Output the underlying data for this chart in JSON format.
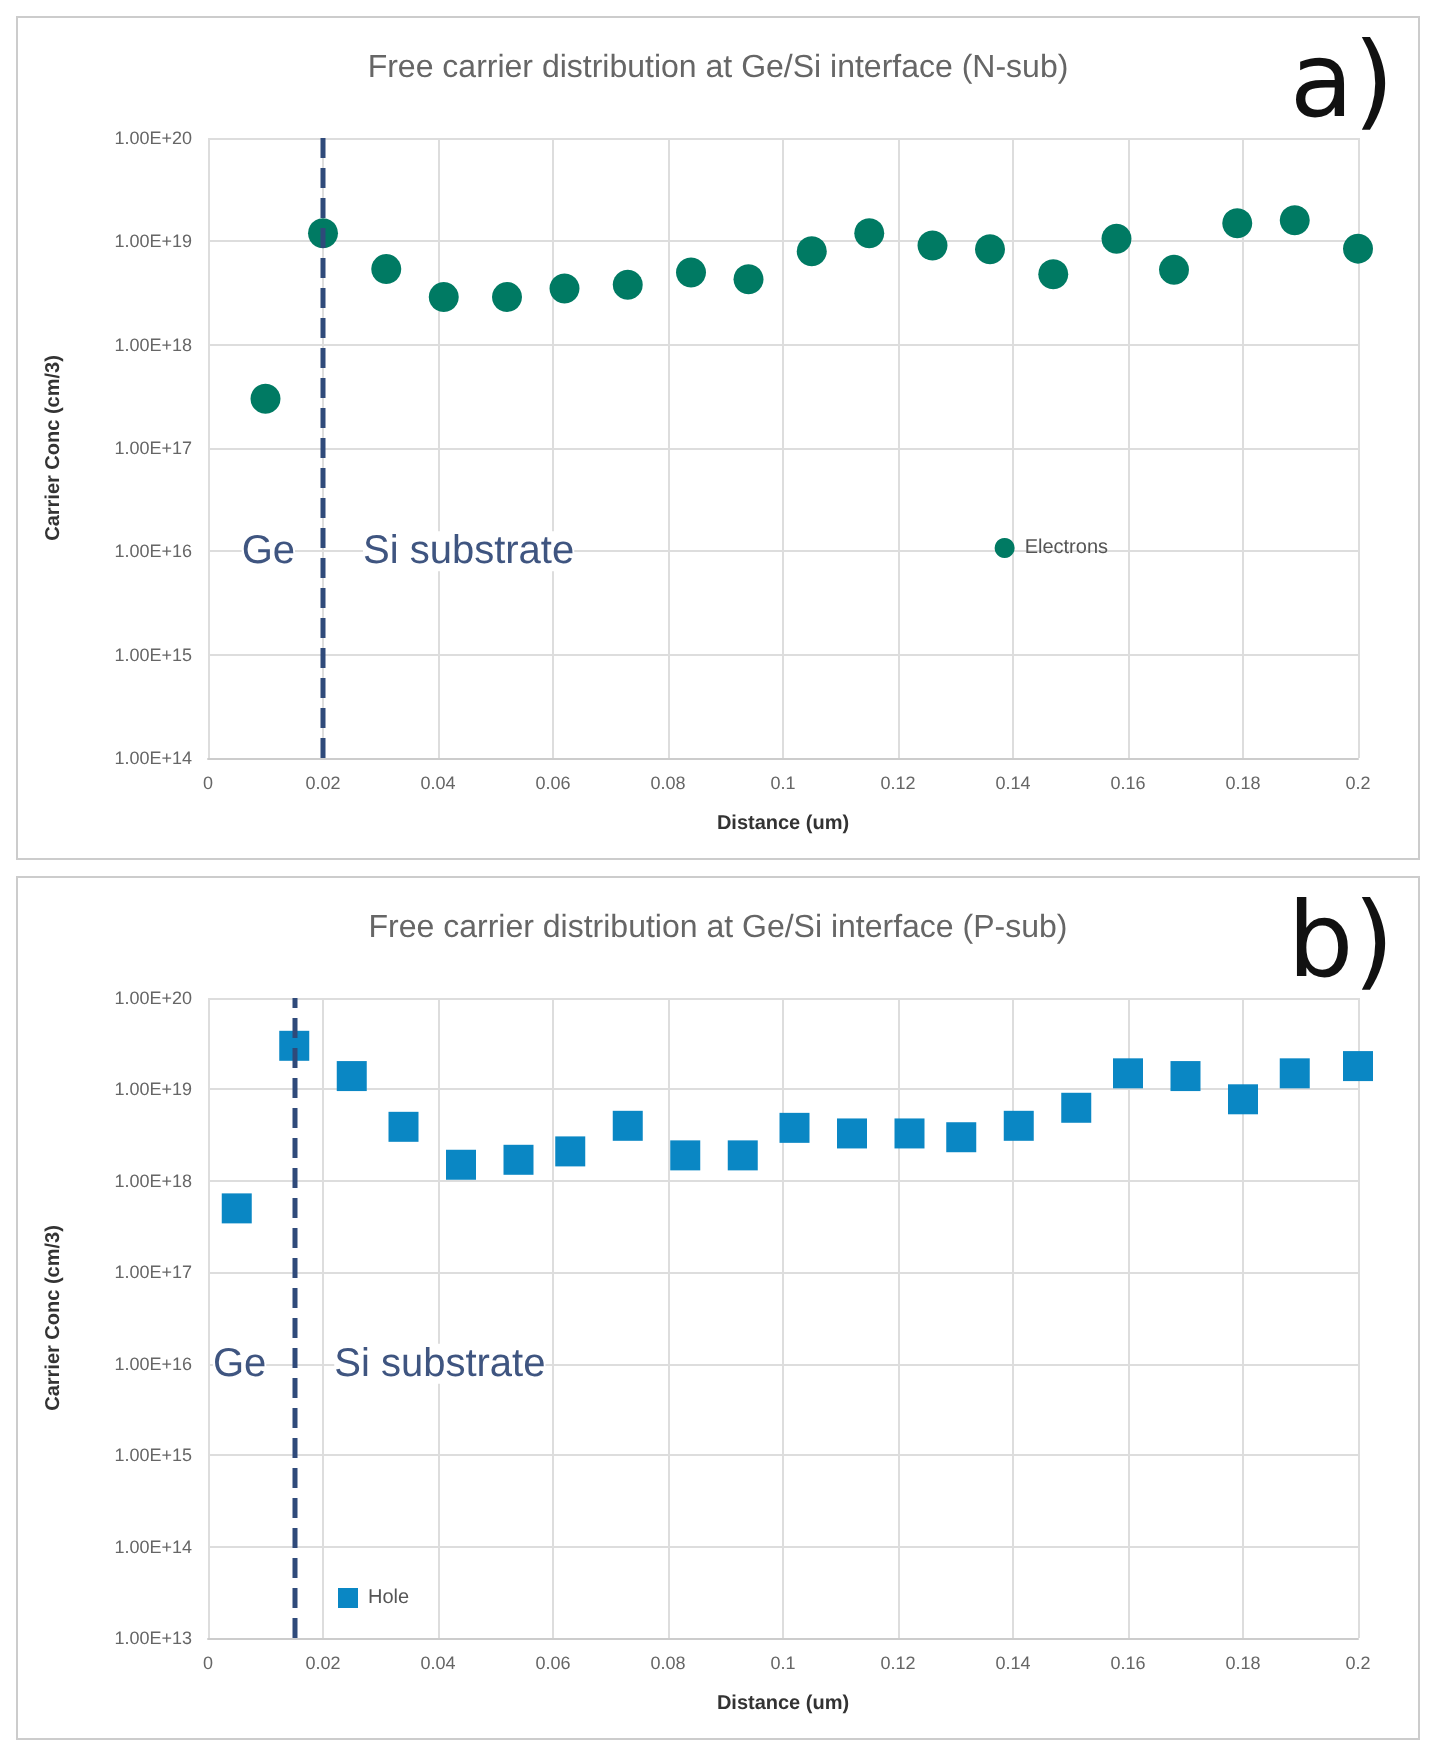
{
  "chart_data": [
    {
      "type": "scatter",
      "title": "Free carrier distribution at Ge/Si interface (N-sub)",
      "xlabel": "Distance (um)",
      "ylabel": "Carrier Conc (cm/3)",
      "log": "y",
      "grid": true,
      "legend": "bottom right",
      "marker": "circle",
      "x": [
        0.01,
        0.02,
        0.031,
        0.041,
        0.052,
        0.062,
        0.073,
        0.084,
        0.094,
        0.105,
        0.115,
        0.126,
        0.136,
        0.147,
        0.158,
        0.168,
        0.179,
        0.189,
        0.2
      ],
      "series": [
        {
          "name": "Electrons",
          "color": "#007a63",
          "values": [
            3e+17,
            1.2e+19,
            5.4e+18,
            2.9e+18,
            2.9e+18,
            3.5e+18,
            3.8e+18,
            5e+18,
            4.3e+18,
            8e+18,
            1.2e+19,
            9.1e+18,
            8.4e+18,
            4.8e+18,
            1.06e+19,
            5.3e+18,
            1.5e+19,
            1.6e+19,
            8.5e+18
          ]
        }
      ],
      "xlim": [
        0,
        0.2
      ],
      "xticks": [
        0,
        0.02,
        0.04,
        0.06,
        0.08,
        0.1,
        0.12,
        0.14,
        0.16,
        0.18,
        0.2
      ],
      "ylim": [
        100000000000000.0,
        1e+20
      ],
      "yticks": [
        {
          "value": 100000000000000.0,
          "label": "1.00E+14"
        },
        {
          "value": 1000000000000000.0,
          "label": "1.00E+15"
        },
        {
          "value": 1e+16,
          "label": "1.00E+16"
        },
        {
          "value": 1e+17,
          "label": "1.00E+17"
        },
        {
          "value": 1e+18,
          "label": "1.00E+18"
        },
        {
          "value": 1e+19,
          "label": "1.00E+19"
        },
        {
          "value": 1e+20,
          "label": "1.00E+20"
        }
      ],
      "ref_lines": [
        {
          "axis": "x",
          "value": 0.02,
          "label": null,
          "color": "#2f4a7a",
          "line_style": "dashed"
        }
      ],
      "annotations": [
        "a)",
        "Ge",
        "Si substrate"
      ]
    },
    {
      "type": "scatter",
      "title": "Free carrier distribution at Ge/Si interface (P-sub)",
      "xlabel": "Distance (um)",
      "ylabel": "Carrier Conc (cm/3)",
      "log": "y",
      "grid": true,
      "legend": "bottom left",
      "marker": "square",
      "x": [
        0.005,
        0.015,
        0.025,
        0.034,
        0.044,
        0.054,
        0.063,
        0.073,
        0.083,
        0.093,
        0.102,
        0.112,
        0.122,
        0.131,
        0.141,
        0.151,
        0.16,
        0.17,
        0.18,
        0.189,
        0.2
      ],
      "series": [
        {
          "name": "Hole",
          "color": "#0a87c4",
          "values": [
            5e+17,
            3e+19,
            1.4e+19,
            3.9e+18,
            1.5e+18,
            1.7e+18,
            2.1e+18,
            4e+18,
            1.9e+18,
            1.9e+18,
            3.8e+18,
            3.3e+18,
            3.3e+18,
            3e+18,
            4e+18,
            6.3e+18,
            1.5e+19,
            1.4e+19,
            7.8e+18,
            1.5e+19,
            1.8e+19
          ]
        }
      ],
      "xlim": [
        0,
        0.2
      ],
      "xticks": [
        0,
        0.02,
        0.04,
        0.06,
        0.08,
        0.1,
        0.12,
        0.14,
        0.16,
        0.18,
        0.2
      ],
      "ylim": [
        10000000000000.0,
        1e+20
      ],
      "yticks": [
        {
          "value": 10000000000000.0,
          "label": "1.00E+13"
        },
        {
          "value": 100000000000000.0,
          "label": "1.00E+14"
        },
        {
          "value": 1000000000000000.0,
          "label": "1.00E+15"
        },
        {
          "value": 1e+16,
          "label": "1.00E+16"
        },
        {
          "value": 1e+17,
          "label": "1.00E+17"
        },
        {
          "value": 1e+18,
          "label": "1.00E+18"
        },
        {
          "value": 1e+19,
          "label": "1.00E+19"
        },
        {
          "value": 1e+20,
          "label": "1.00E+20"
        }
      ],
      "ref_lines": [
        {
          "axis": "x",
          "value": 0.015,
          "label": null,
          "color": "#2f4a7a",
          "line_style": "dashed"
        }
      ],
      "annotations": [
        "b)",
        "Ge",
        "Si substrate"
      ]
    }
  ]
}
